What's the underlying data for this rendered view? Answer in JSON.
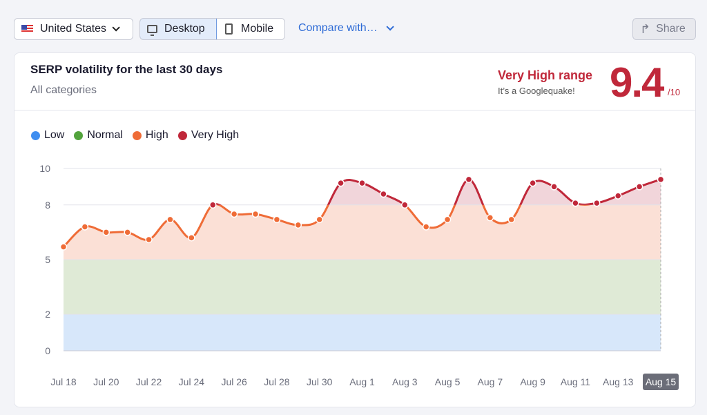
{
  "toolbar": {
    "country": "United States",
    "device_desktop": "Desktop",
    "device_mobile": "Mobile",
    "selected_device": "Desktop",
    "compare": "Compare with…",
    "share": "Share"
  },
  "card": {
    "title": "SERP volatility for the last 30 days",
    "subtitle": "All categories",
    "range_label": "Very High range",
    "range_note": "It’s a Googlequake!",
    "score": "9.4",
    "score_max": "/10"
  },
  "legend": [
    {
      "label": "Low",
      "color": "#3f8ef0"
    },
    {
      "label": "Normal",
      "color": "#52a33c"
    },
    {
      "label": "High",
      "color": "#ef6c37"
    },
    {
      "label": "Very High",
      "color": "#c0283a"
    }
  ],
  "chart_data": {
    "type": "line",
    "y_ticks": [
      0,
      2,
      5,
      8,
      10
    ],
    "ylim": [
      0,
      10
    ],
    "bands": [
      {
        "label": "Low",
        "from": 0,
        "to": 2,
        "color": "#d7e7fa"
      },
      {
        "label": "Normal",
        "from": 2,
        "to": 5,
        "color": "#dfead6"
      },
      {
        "label": "High",
        "from": 5,
        "to": 8,
        "color": "#fbe0d6"
      },
      {
        "label": "Very High",
        "from": 8,
        "to": 10,
        "color": "#f1d5da"
      }
    ],
    "x_tick_labels": [
      "Jul 18",
      "Jul 20",
      "Jul 22",
      "Jul 24",
      "Jul 26",
      "Jul 28",
      "Jul 30",
      "Aug 1",
      "Aug 3",
      "Aug 5",
      "Aug 7",
      "Aug 9",
      "Aug 11",
      "Aug 13",
      "Aug 15"
    ],
    "highlighted_x": "Aug 15",
    "x": [
      "Jul 18",
      "Jul 19",
      "Jul 20",
      "Jul 21",
      "Jul 22",
      "Jul 23",
      "Jul 24",
      "Jul 25",
      "Jul 26",
      "Jul 27",
      "Jul 28",
      "Jul 29",
      "Jul 30",
      "Jul 31",
      "Aug 1",
      "Aug 2",
      "Aug 3",
      "Aug 4",
      "Aug 5",
      "Aug 6",
      "Aug 7",
      "Aug 8",
      "Aug 9",
      "Aug 10",
      "Aug 11",
      "Aug 12",
      "Aug 13",
      "Aug 14",
      "Aug 15"
    ],
    "values": [
      5.7,
      6.8,
      6.5,
      6.5,
      6.1,
      7.2,
      6.2,
      8.0,
      7.5,
      7.5,
      7.2,
      6.9,
      7.2,
      9.2,
      9.2,
      8.6,
      8.0,
      6.8,
      7.2,
      9.4,
      7.3,
      7.2,
      9.2,
      9.0,
      8.1,
      8.1,
      8.5,
      9.0,
      9.4
    ],
    "grid": true
  }
}
